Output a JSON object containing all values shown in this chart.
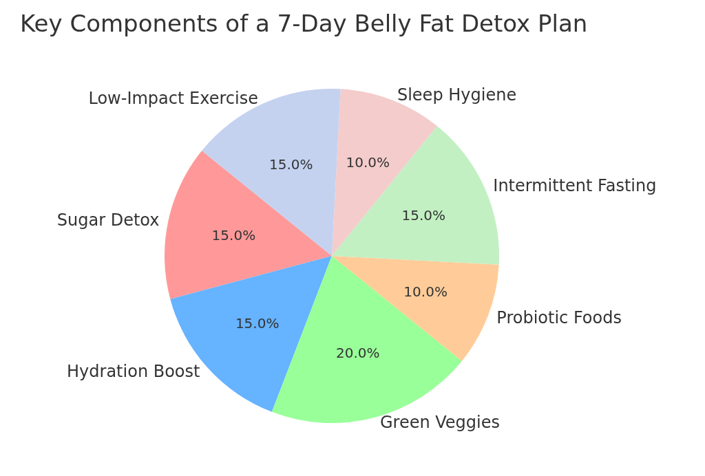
{
  "chart_data": {
    "type": "pie",
    "title": "Key Components of a 7-Day Belly Fat Detox Plan",
    "categories": [
      "Sugar Detox",
      "Hydration Boost",
      "Green Veggies",
      "Probiotic Foods",
      "Intermittent Fasting",
      "Sleep Hygiene",
      "Low-Impact Exercise"
    ],
    "values": [
      15,
      15,
      20,
      10,
      15,
      10,
      15
    ],
    "value_labels": [
      "15.0%",
      "15.0%",
      "20.0%",
      "10.0%",
      "15.0%",
      "10.0%",
      "15.0%"
    ],
    "colors": [
      "#ff9999",
      "#66b3ff",
      "#99ff99",
      "#ffcc99",
      "#c2f0c2",
      "#f4cccc",
      "#c4d2f0"
    ],
    "legend": false
  }
}
